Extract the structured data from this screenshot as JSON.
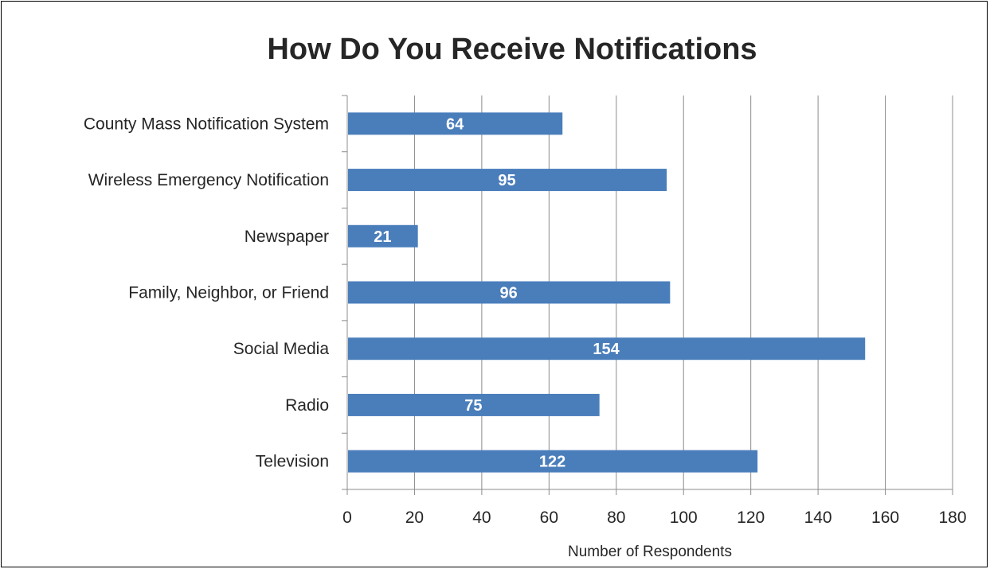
{
  "chart_data": {
    "type": "bar",
    "orientation": "horizontal",
    "title": "How Do You Receive Notifications",
    "xlabel": "Number of Respondents",
    "ylabel": "",
    "categories": [
      "County Mass Notification System",
      "Wireless Emergency Notification",
      "Newspaper",
      "Family, Neighbor, or Friend",
      "Social Media",
      "Radio",
      "Television"
    ],
    "values": [
      64,
      95,
      21,
      96,
      154,
      75,
      122
    ],
    "xlim": [
      0,
      180
    ],
    "xticks": [
      0,
      20,
      40,
      60,
      80,
      100,
      120,
      140,
      160,
      180
    ],
    "grid": "vertical",
    "legend": "none",
    "bar_color": "#4a7ebb",
    "data_labels": "inside-center"
  }
}
